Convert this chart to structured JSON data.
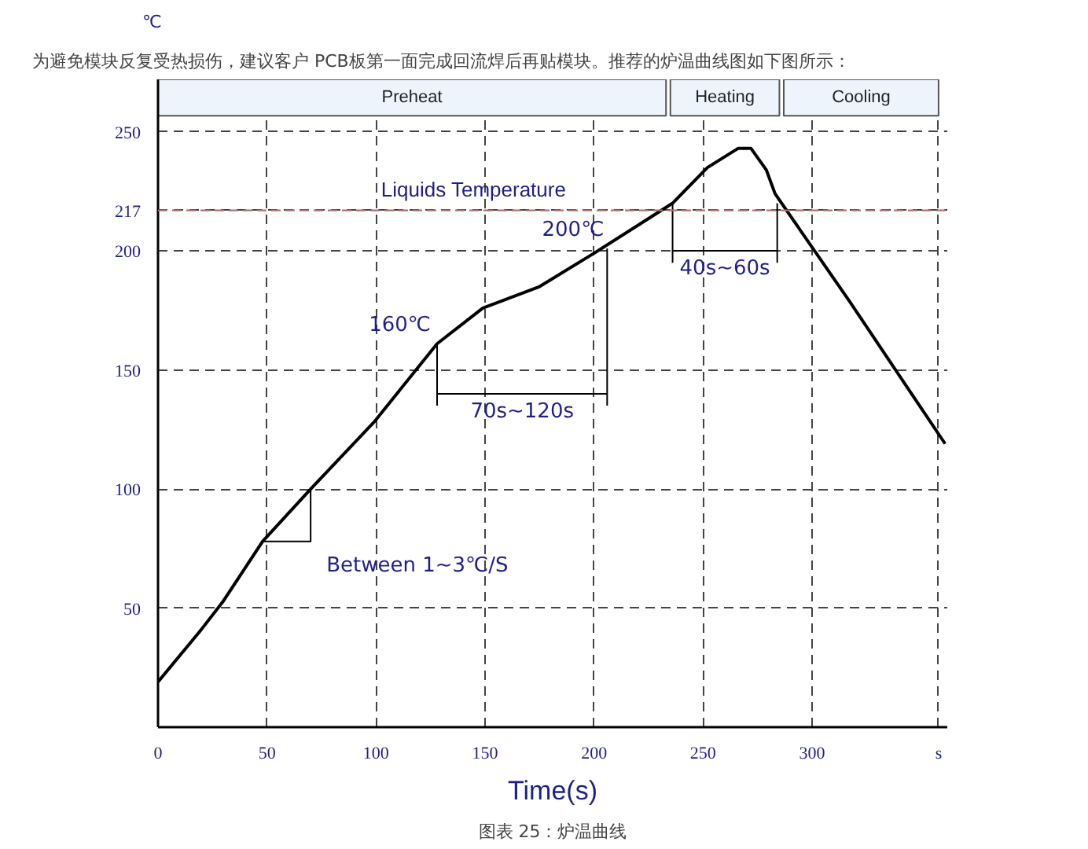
{
  "chart_data": {
    "type": "line",
    "title": "为避免模块反复受热损伤，建议客户 PCB板第一面完成回流焊后再贴模块。推荐的炉温曲线图如下图所示：",
    "xlabel": "Time(s)",
    "ylabel": "℃",
    "xlim": [
      0,
      362
    ],
    "ylim": [
      0,
      272
    ],
    "xticks": [
      0,
      50,
      100,
      150,
      200,
      250,
      300,
      {
        "value": 358,
        "label": "s"
      }
    ],
    "yticks": [
      50,
      100,
      150,
      200,
      217,
      250
    ],
    "grid": true,
    "series": [
      {
        "color": "#000000",
        "x": [
          0,
          19,
          30,
          48,
          70,
          99,
          128,
          149,
          175,
          200,
          236,
          252,
          266,
          272,
          279,
          283,
          317,
          361
        ],
        "values": [
          19,
          40,
          53,
          78,
          100,
          128,
          161,
          176,
          185,
          199,
          220,
          235,
          243,
          243,
          234,
          224,
          179,
          119
        ]
      },
      {
        "color": "#000000",
        "x": [
          48,
          70,
          70
        ],
        "values": [
          78,
          78,
          100
        ]
      },
      {
        "color": "#000000",
        "x": [
          128,
          128
        ],
        "values": [
          161,
          135
        ]
      },
      {
        "color": "#000000",
        "x": [
          206,
          206
        ],
        "values": [
          201,
          135
        ]
      },
      {
        "color": "#000000",
        "x": [
          236,
          236
        ],
        "values": [
          220,
          195
        ]
      },
      {
        "color": "#000000",
        "x": [
          284,
          284
        ],
        "values": [
          220,
          195
        ]
      },
      {
        "color": "#000000",
        "x": [
          128,
          206
        ],
        "values": [
          140,
          140
        ]
      },
      {
        "color": "#000000",
        "x": [
          236,
          284
        ],
        "values": [
          200,
          200
        ]
      }
    ],
    "ref_lines": [
      {
        "axis": "y",
        "value": 217,
        "label": "Liquids Temperature",
        "color": "#b07070",
        "line_style": "dashed"
      }
    ],
    "bands": [
      {
        "axis": "x",
        "from": 0,
        "to": 233,
        "label": "Preheat",
        "color": "#eef4fb"
      },
      {
        "axis": "x",
        "from": 235,
        "to": 285,
        "label": "Heating",
        "color": "#eef4fb"
      },
      {
        "axis": "x",
        "from": 287,
        "to": 358,
        "label": "Cooling",
        "color": "#eef4fb"
      }
    ],
    "annotations": [
      {
        "text": "70s~120s",
        "x": 167,
        "y": 140
      },
      {
        "text": "40s~60s",
        "x": 260,
        "y": 200
      },
      {
        "text": "160℃",
        "x": 128,
        "y": 161
      },
      {
        "text": "200℃",
        "x": 206,
        "y": 201
      },
      {
        "text": "Between 1~3℃/S",
        "x": 70,
        "y": 78
      },
      "图表 25：炉温曲线"
    ]
  }
}
